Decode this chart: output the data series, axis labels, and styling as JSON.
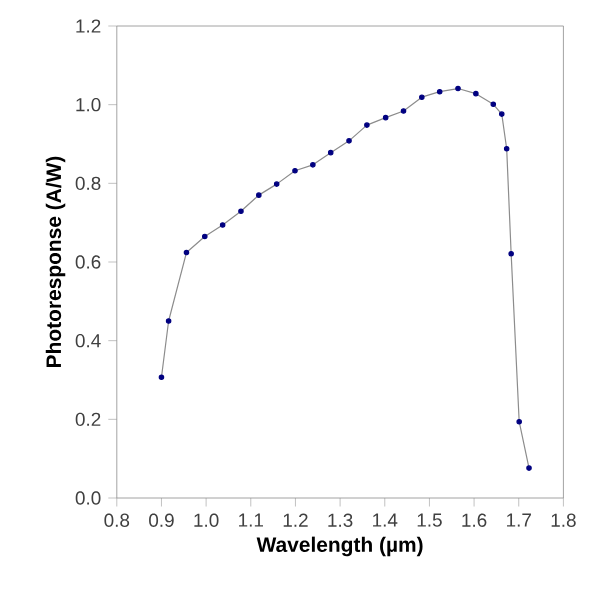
{
  "chart_data": {
    "type": "line",
    "xlabel": "Wavelength (µm)",
    "ylabel": "Photoresponse (A/W)",
    "x": [
      0.9,
      0.916,
      0.956,
      0.997,
      1.037,
      1.078,
      1.118,
      1.158,
      1.199,
      1.239,
      1.279,
      1.32,
      1.36,
      1.402,
      1.442,
      1.483,
      1.523,
      1.564,
      1.604,
      1.643,
      1.662,
      1.673,
      1.683,
      1.701,
      1.723
    ],
    "series": [
      {
        "color": "#000080",
        "values": [
          0.307,
          0.45,
          0.624,
          0.665,
          0.694,
          0.729,
          0.77,
          0.798,
          0.832,
          0.847,
          0.878,
          0.908,
          0.948,
          0.967,
          0.984,
          1.019,
          1.033,
          1.041,
          1.028,
          1.001,
          0.976,
          0.888,
          0.621,
          0.194,
          0.076
        ]
      }
    ],
    "xlim": [
      0.8,
      1.8
    ],
    "ylim": [
      0.0,
      1.2
    ],
    "xticks": [
      {
        "value": 0.8,
        "label": "0.8"
      },
      {
        "value": 0.9,
        "label": "0.9"
      },
      {
        "value": 1.0,
        "label": "1.0"
      },
      {
        "value": 1.1,
        "label": "1.1"
      },
      {
        "value": 1.2,
        "label": "1.2"
      },
      {
        "value": 1.3,
        "label": "1.3"
      },
      {
        "value": 1.4,
        "label": "1.4"
      },
      {
        "value": 1.5,
        "label": "1.5"
      },
      {
        "value": 1.6,
        "label": "1.6"
      },
      {
        "value": 1.7,
        "label": "1.7"
      },
      {
        "value": 1.8,
        "label": "1.8"
      }
    ],
    "yticks": [
      {
        "value": 0.0,
        "label": "0.0"
      },
      {
        "value": 0.2,
        "label": "0.2"
      },
      {
        "value": 0.4,
        "label": "0.4"
      },
      {
        "value": 0.6,
        "label": "0.6"
      },
      {
        "value": 0.8,
        "label": "0.8"
      },
      {
        "value": 1.0,
        "label": "1.0"
      },
      {
        "value": 1.2,
        "label": "1.2"
      }
    ],
    "grid": false,
    "marker": "circle",
    "line_style": "solid"
  }
}
